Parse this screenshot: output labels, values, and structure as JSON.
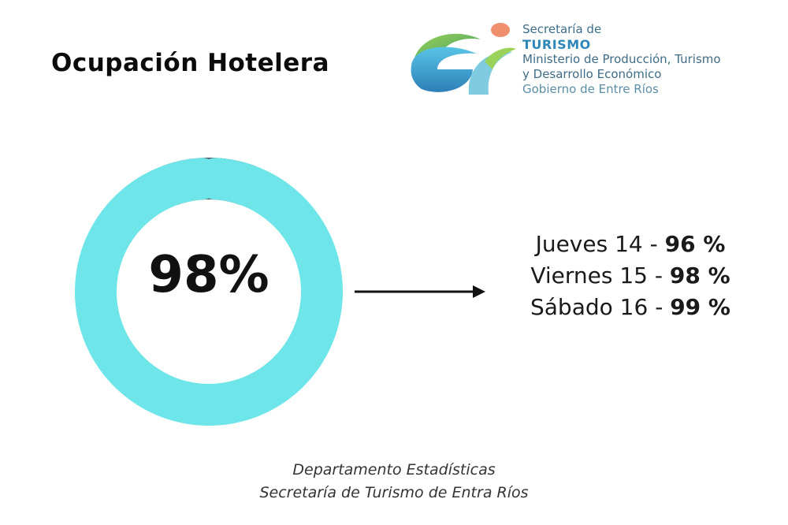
{
  "title": "Ocupación Hotelera",
  "logo": {
    "mark_text": "er",
    "line1": "Secretaría de",
    "line2": "TURISMO",
    "line3": "Ministerio de Producción, Turismo",
    "line4": "y Desarrollo Económico",
    "line5": "Gobierno de Entre Ríos"
  },
  "chart_data": {
    "type": "pie",
    "variant": "donut",
    "center_label": "98%",
    "slices": [
      {
        "value": 98,
        "color": "#6ee5e8"
      },
      {
        "value": 2,
        "color": "#454d56"
      }
    ]
  },
  "breakdown": [
    {
      "label": "Jueves 14 - ",
      "value": "96 %"
    },
    {
      "label": "Viernes 15 - ",
      "value": "98 %"
    },
    {
      "label": "Sábado 16 - ",
      "value": "99 %"
    }
  ],
  "source": {
    "line1": "Departamento Estadísticas",
    "line2": "Secretaría de Turismo de Entra Ríos"
  },
  "colors": {
    "accent": "#6ee5e8",
    "remainder": "#454d56",
    "brand_blue": "#2f86b8"
  }
}
